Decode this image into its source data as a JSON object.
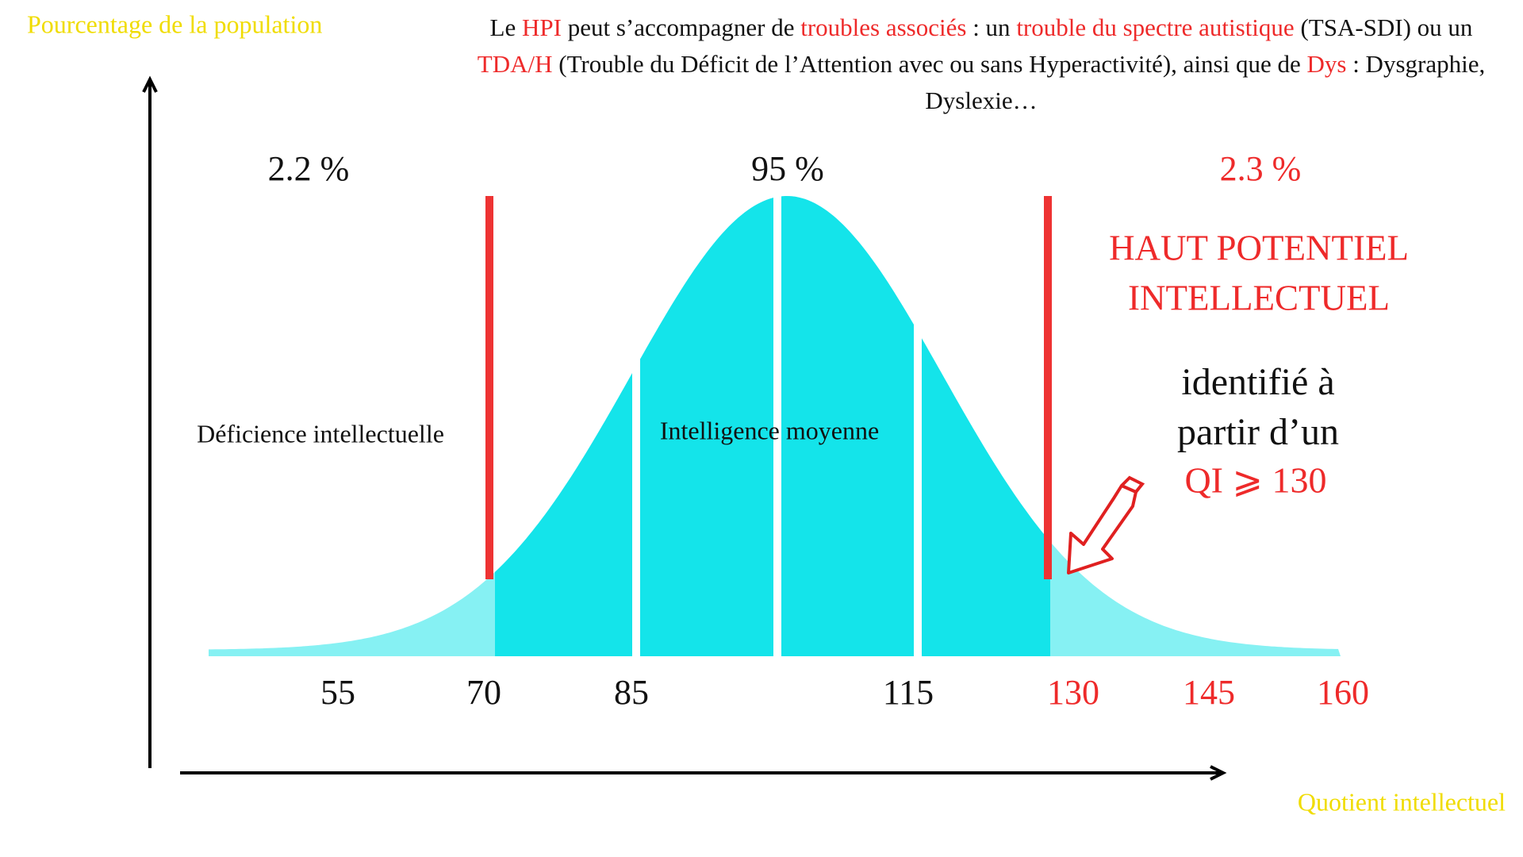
{
  "y_axis_label": "Pourcentage de la population",
  "x_axis_label": "Quotient intellectuel",
  "header": {
    "segments": [
      {
        "text": "Le ",
        "highlight": false
      },
      {
        "text": "HPI",
        "highlight": true
      },
      {
        "text": " peut s’accompagner de ",
        "highlight": false
      },
      {
        "text": "troubles associés",
        "highlight": true
      },
      {
        "text": " : un ",
        "highlight": false
      },
      {
        "text": "trouble du spectre autistique",
        "highlight": true
      },
      {
        "text": " (TSA-SDI) ou un ",
        "highlight": false
      },
      {
        "text": "TDA/H",
        "highlight": true
      },
      {
        "text": " (Trouble du Déficit de l’Attention avec ou sans Hyperactivité), ainsi que de ",
        "highlight": false
      },
      {
        "text": "Dys",
        "highlight": true
      },
      {
        "text": " : Dysgraphie, Dyslexie…",
        "highlight": false
      }
    ]
  },
  "percentages": [
    {
      "text": "2.2 %",
      "highlight": false
    },
    {
      "text": "95 %",
      "highlight": false
    },
    {
      "text": "2.3 %",
      "highlight": true
    }
  ],
  "regions": [
    "Déficience intellectuelle",
    "Intelligence moyenne"
  ],
  "hpi": {
    "title_lines": [
      "HAUT POTENTIEL",
      "INTELLECTUEL"
    ],
    "note_lines": [
      "identifié à",
      "partir d’un"
    ],
    "threshold": "QI ⩾ 130"
  },
  "ticks": [
    {
      "label": "55",
      "highlight": false
    },
    {
      "label": "70",
      "highlight": false
    },
    {
      "label": "85",
      "highlight": false
    },
    {
      "label": "115",
      "highlight": false
    },
    {
      "label": "130",
      "highlight": true
    },
    {
      "label": "145",
      "highlight": true
    },
    {
      "label": "160",
      "highlight": true
    }
  ]
}
